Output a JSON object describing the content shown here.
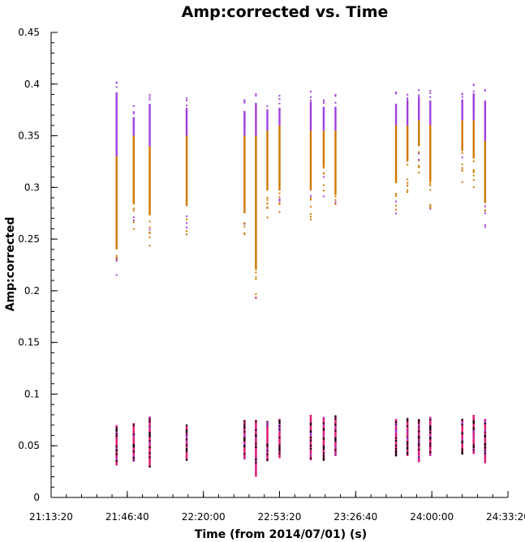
{
  "chart_data": {
    "type": "scatter",
    "title": "Amp:corrected vs. Time",
    "xlabel": "Time (from 2014/07/01) (s)",
    "ylabel": "Amp:corrected",
    "xlim": [
      "21:13:20",
      "24:33:20"
    ],
    "ylim": [
      0,
      0.45
    ],
    "x_ticks": [
      "21:13:20",
      "21:46:40",
      "22:20:00",
      "22:53:20",
      "23:26:40",
      "24:00:00",
      "24:33:20"
    ],
    "y_ticks": [
      "0",
      "0.05",
      "0.1",
      "0.15",
      "0.2",
      "0.25",
      "0.3",
      "0.35",
      "0.4",
      "0.45"
    ],
    "grid": false,
    "colors": {
      "purple": "#a040e0",
      "orange": "#d07800",
      "magenta": "#e0207a",
      "black": "#000000",
      "axis": "#000000"
    },
    "scans": [
      {
        "time": "21:42:00",
        "high": {
          "min": 0.21,
          "max": 0.404,
          "orange_max": 0.33
        },
        "low": {
          "min": 0.031,
          "max": 0.07
        }
      },
      {
        "time": "21:49:30",
        "high": {
          "min": 0.255,
          "max": 0.38,
          "orange_max": 0.35
        },
        "low": {
          "min": 0.035,
          "max": 0.072
        }
      },
      {
        "time": "21:56:30",
        "high": {
          "min": 0.243,
          "max": 0.393,
          "orange_max": 0.34
        },
        "low": {
          "min": 0.029,
          "max": 0.078
        }
      },
      {
        "time": "22:12:40",
        "high": {
          "min": 0.252,
          "max": 0.389,
          "orange_max": 0.35
        },
        "low": {
          "min": 0.036,
          "max": 0.07
        }
      },
      {
        "time": "22:38:00",
        "high": {
          "min": 0.245,
          "max": 0.386,
          "orange_max": 0.35
        },
        "low": {
          "min": 0.037,
          "max": 0.075
        }
      },
      {
        "time": "22:43:00",
        "high": {
          "min": 0.19,
          "max": 0.393,
          "orange_max": 0.35
        },
        "low": {
          "min": 0.02,
          "max": 0.075
        }
      },
      {
        "time": "22:48:00",
        "high": {
          "min": 0.267,
          "max": 0.386,
          "orange_max": 0.355
        },
        "low": {
          "min": 0.035,
          "max": 0.074
        }
      },
      {
        "time": "22:53:20",
        "high": {
          "min": 0.267,
          "max": 0.389,
          "orange_max": 0.36
        },
        "low": {
          "min": 0.038,
          "max": 0.076
        }
      },
      {
        "time": "23:07:00",
        "high": {
          "min": 0.267,
          "max": 0.395,
          "orange_max": 0.355
        },
        "low": {
          "min": 0.036,
          "max": 0.08
        }
      },
      {
        "time": "23:12:40",
        "high": {
          "min": 0.29,
          "max": 0.39,
          "orange_max": 0.355
        },
        "low": {
          "min": 0.036,
          "max": 0.078
        }
      },
      {
        "time": "23:17:50",
        "high": {
          "min": 0.264,
          "max": 0.39,
          "orange_max": 0.355
        },
        "low": {
          "min": 0.04,
          "max": 0.079
        }
      },
      {
        "time": "23:44:20",
        "high": {
          "min": 0.274,
          "max": 0.393,
          "orange_max": 0.36
        },
        "low": {
          "min": 0.04,
          "max": 0.076
        }
      },
      {
        "time": "23:49:20",
        "high": {
          "min": 0.295,
          "max": 0.396,
          "orange_max": 0.36
        },
        "low": {
          "min": 0.04,
          "max": 0.077
        }
      },
      {
        "time": "23:54:20",
        "high": {
          "min": 0.31,
          "max": 0.399,
          "orange_max": 0.365
        },
        "low": {
          "min": 0.034,
          "max": 0.076
        }
      },
      {
        "time": "23:59:20",
        "high": {
          "min": 0.275,
          "max": 0.396,
          "orange_max": 0.36
        },
        "low": {
          "min": 0.04,
          "max": 0.078
        }
      },
      {
        "time": "24:13:20",
        "high": {
          "min": 0.305,
          "max": 0.397,
          "orange_max": 0.365
        },
        "low": {
          "min": 0.042,
          "max": 0.076
        }
      },
      {
        "time": "24:18:20",
        "high": {
          "min": 0.298,
          "max": 0.403,
          "orange_max": 0.365
        },
        "low": {
          "min": 0.042,
          "max": 0.08
        }
      },
      {
        "time": "24:23:20",
        "high": {
          "min": 0.255,
          "max": 0.396,
          "orange_max": 0.345
        },
        "low": {
          "min": 0.033,
          "max": 0.076
        }
      }
    ]
  }
}
